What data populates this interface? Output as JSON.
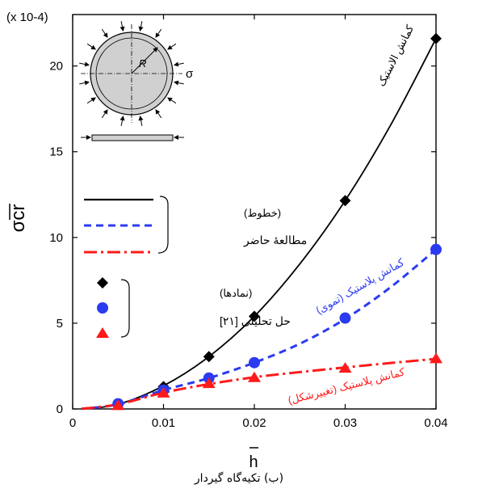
{
  "figure": {
    "caption": "(ب) تکیه‌گاه گیردار"
  },
  "chart_data": {
    "type": "line",
    "x_label": "h",
    "y_label": "σcr",
    "y_multiplier_label": "(x 10-4)",
    "x_ticks": [
      0,
      0.01,
      0.02,
      0.03,
      0.04
    ],
    "y_ticks": [
      0,
      5,
      10,
      15,
      20
    ],
    "xlim": [
      0,
      0.04
    ],
    "ylim": [
      0,
      23
    ],
    "grid": false,
    "inset_symbol": "σ",
    "inset_radius_label": "R",
    "legend_lines_title": "(خطوط)",
    "legend_lines_label": "مطالعهٔ حاضر",
    "legend_markers_title": "(نمادها)",
    "legend_markers_label": "حل تحلیلی [۲۱]",
    "series": [
      {
        "name": "کمانش الاستیک",
        "style": "solid",
        "color": "#000000",
        "x": [
          0.001,
          0.005,
          0.01,
          0.015,
          0.02,
          0.025,
          0.03,
          0.035,
          0.04
        ],
        "y": [
          0.01,
          0.27,
          1.35,
          3.05,
          5.4,
          8.45,
          12.15,
          16.55,
          21.6
        ]
      },
      {
        "name": "کمانش پلاستیک (تموی)",
        "style": "dashed",
        "color": "#2b3bf0",
        "x": [
          0.001,
          0.005,
          0.01,
          0.015,
          0.02,
          0.025,
          0.03,
          0.035,
          0.04
        ],
        "y": [
          0.01,
          0.27,
          1.1,
          1.8,
          2.7,
          3.8,
          5.25,
          7.1,
          9.3
        ]
      },
      {
        "name": "کمانش پلاستیک (تغییرشکل)",
        "style": "dashdot",
        "color": "#ff1a1a",
        "x": [
          0.001,
          0.005,
          0.01,
          0.015,
          0.02,
          0.025,
          0.03,
          0.035,
          0.04
        ],
        "y": [
          0.01,
          0.27,
          0.95,
          1.45,
          1.85,
          2.15,
          2.42,
          2.68,
          2.92
        ]
      }
    ],
    "markers": [
      {
        "shape": "diamond",
        "color": "#000000",
        "x": [
          0.005,
          0.01,
          0.015,
          0.02,
          0.03,
          0.04
        ],
        "y": [
          0.28,
          1.3,
          3.05,
          5.4,
          12.15,
          21.6
        ]
      },
      {
        "shape": "circle",
        "color": "#2b3bf0",
        "x": [
          0.005,
          0.01,
          0.015,
          0.02,
          0.03,
          0.04
        ],
        "y": [
          0.3,
          1.1,
          1.8,
          2.7,
          5.3,
          9.3
        ]
      },
      {
        "shape": "triangle",
        "color": "#ff1a1a",
        "x": [
          0.005,
          0.01,
          0.015,
          0.02,
          0.03,
          0.04
        ],
        "y": [
          0.22,
          0.95,
          1.5,
          1.85,
          2.4,
          2.95
        ]
      }
    ]
  }
}
